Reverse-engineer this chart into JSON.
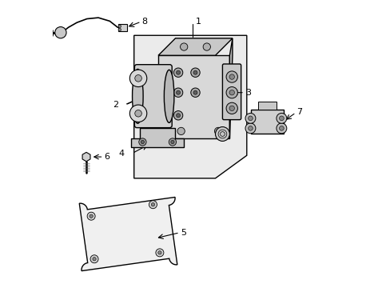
{
  "background_color": "#ffffff",
  "line_color": "#000000",
  "figsize": [
    4.89,
    3.6
  ],
  "dpi": 100,
  "part_fill": "#e8e8e8",
  "shaded_box_fill": "#ebebeb",
  "motor_fill": "#d0d0d0",
  "block_fill": "#d8d8d8",
  "cover_fill": "#f0f0f0"
}
